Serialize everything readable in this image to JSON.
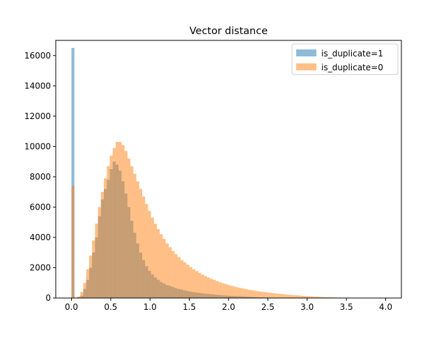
{
  "chart_data": {
    "type": "bar",
    "subtype": "overlaid-histogram",
    "title": "Vector distance",
    "xlabel": "",
    "ylabel": "",
    "xlim": [
      -0.2,
      4.2
    ],
    "ylim": [
      0,
      17000
    ],
    "x_ticks": [
      0.0,
      0.5,
      1.0,
      1.5,
      2.0,
      2.5,
      3.0,
      3.5,
      4.0
    ],
    "x_tick_labels": [
      "0.0",
      "0.5",
      "1.0",
      "1.5",
      "2.0",
      "2.5",
      "3.0",
      "3.5",
      "4.0"
    ],
    "y_ticks": [
      0,
      2000,
      4000,
      6000,
      8000,
      10000,
      12000,
      14000,
      16000
    ],
    "y_tick_labels": [
      "0",
      "2000",
      "4000",
      "6000",
      "8000",
      "10000",
      "12000",
      "14000",
      "16000"
    ],
    "grid": false,
    "legend_position": "upper-right",
    "bin_width": 0.0375,
    "series": [
      {
        "name": "is_duplicate=1",
        "color": "#1f77b4",
        "alpha": 0.5,
        "bin_start": 0.0,
        "bin_width": 0.0375,
        "values": [
          16500,
          0,
          50,
          150,
          600,
          1200,
          2000,
          3000,
          4000,
          5400,
          6500,
          7200,
          7800,
          8500,
          9000,
          8800,
          8400,
          7700,
          6900,
          6000,
          5100,
          4300,
          3600,
          3000,
          2500,
          2100,
          1800,
          1550,
          1350,
          1200,
          1050,
          950,
          850,
          800,
          720,
          650,
          600,
          550,
          500,
          460,
          420,
          390,
          360,
          330,
          310,
          290,
          270,
          250,
          230,
          210,
          195,
          180,
          165,
          150,
          140,
          130,
          120,
          110,
          100,
          90,
          80,
          70,
          60,
          50,
          45,
          40,
          35,
          30,
          25,
          20,
          18,
          15,
          12,
          10,
          8,
          6,
          5,
          4,
          3,
          2,
          1,
          1,
          1,
          0,
          0,
          0,
          0,
          0,
          0,
          0,
          0,
          0,
          0,
          0,
          0,
          0,
          0,
          0,
          0,
          0,
          0,
          0,
          0,
          0,
          0,
          0,
          0,
          0
        ]
      },
      {
        "name": "is_duplicate=0",
        "color": "#ff7f0e",
        "alpha": 0.5,
        "bin_start": 0.0,
        "bin_width": 0.0375,
        "values": [
          7400,
          0,
          100,
          400,
          1000,
          1900,
          2800,
          3800,
          4900,
          6000,
          7000,
          7900,
          8700,
          9400,
          9900,
          10300,
          10300,
          10100,
          9700,
          9200,
          8700,
          8200,
          7700,
          7200,
          6700,
          6200,
          5750,
          5300,
          4900,
          4550,
          4200,
          3900,
          3600,
          3350,
          3100,
          2900,
          2700,
          2500,
          2350,
          2200,
          2050,
          1900,
          1780,
          1660,
          1550,
          1450,
          1350,
          1270,
          1190,
          1110,
          1040,
          970,
          910,
          850,
          800,
          750,
          700,
          660,
          620,
          580,
          540,
          510,
          480,
          450,
          420,
          395,
          370,
          345,
          320,
          300,
          280,
          260,
          240,
          220,
          205,
          190,
          175,
          160,
          145,
          130,
          118,
          106,
          95,
          85,
          75,
          67,
          59,
          52,
          45,
          39,
          33,
          28,
          24,
          20,
          16,
          13,
          10,
          8,
          6,
          4,
          3,
          2,
          1,
          1,
          0,
          0,
          0,
          0
        ]
      }
    ]
  }
}
